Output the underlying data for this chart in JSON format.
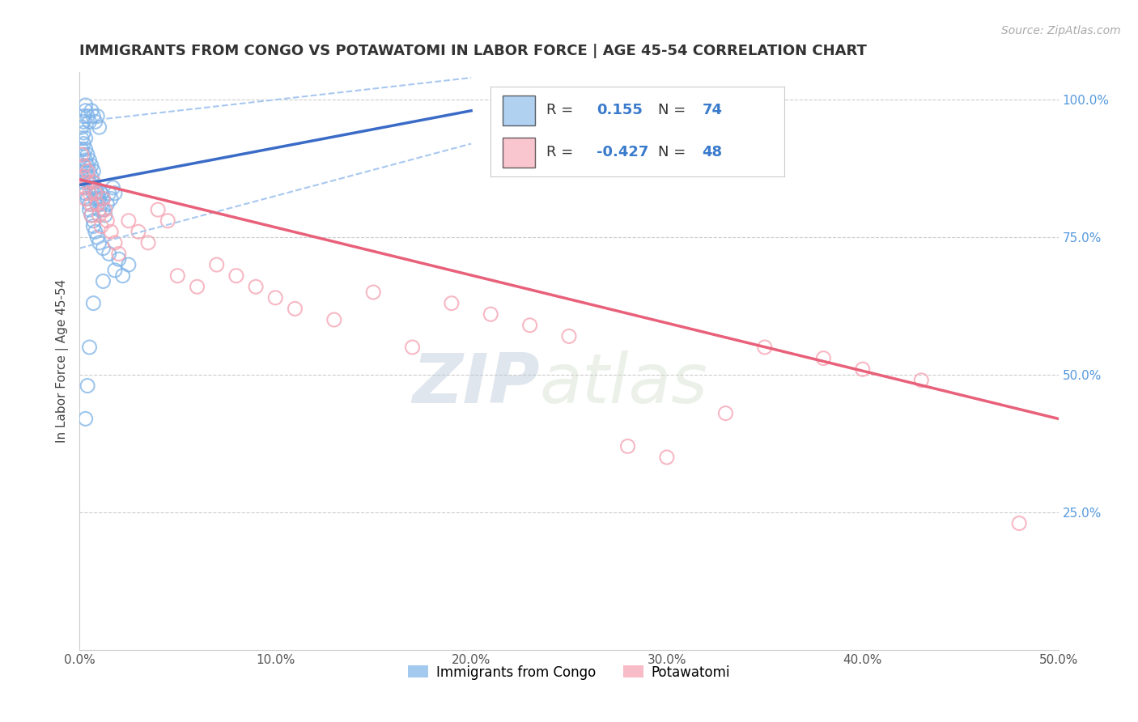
{
  "title": "IMMIGRANTS FROM CONGO VS POTAWATOMI IN LABOR FORCE | AGE 45-54 CORRELATION CHART",
  "source": "Source: ZipAtlas.com",
  "ylabel": "In Labor Force | Age 45-54",
  "xlim": [
    0.0,
    0.5
  ],
  "ylim": [
    0.0,
    1.05
  ],
  "xticks": [
    0.0,
    0.1,
    0.2,
    0.3,
    0.4,
    0.5
  ],
  "xticklabels": [
    "0.0%",
    "10.0%",
    "20.0%",
    "30.0%",
    "40.0%",
    "50.0%"
  ],
  "yticks_right": [
    0.25,
    0.5,
    0.75,
    1.0
  ],
  "yticklabels_right": [
    "25.0%",
    "50.0%",
    "75.0%",
    "100.0%"
  ],
  "watermark_zip": "ZIP",
  "watermark_atlas": "atlas",
  "legend_r_congo": "0.155",
  "legend_n_congo": "74",
  "legend_r_potawatomi": "-0.427",
  "legend_n_potawatomi": "48",
  "color_congo": "#7EB3E8",
  "color_potawatomi": "#F5A0B0",
  "color_trendline_congo": "#3A6BC7",
  "color_trendline_potawatomi": "#E8607A",
  "color_trendline_congo_ci": "#A8C8F0",
  "background_color": "#FFFFFF",
  "congo_x": [
    0.001,
    0.001,
    0.001,
    0.002,
    0.002,
    0.002,
    0.002,
    0.002,
    0.003,
    0.003,
    0.003,
    0.003,
    0.004,
    0.004,
    0.004,
    0.005,
    0.005,
    0.005,
    0.006,
    0.006,
    0.006,
    0.007,
    0.007,
    0.007,
    0.008,
    0.008,
    0.009,
    0.009,
    0.01,
    0.01,
    0.011,
    0.011,
    0.012,
    0.012,
    0.013,
    0.014,
    0.015,
    0.016,
    0.017,
    0.018,
    0.002,
    0.003,
    0.003,
    0.004,
    0.005,
    0.006,
    0.007,
    0.008,
    0.009,
    0.01,
    0.001,
    0.002,
    0.002,
    0.003,
    0.004,
    0.005,
    0.005,
    0.006,
    0.007,
    0.007,
    0.008,
    0.009,
    0.01,
    0.012,
    0.015,
    0.02,
    0.025,
    0.018,
    0.022,
    0.012,
    0.007,
    0.005,
    0.004,
    0.003
  ],
  "congo_y": [
    0.91,
    0.93,
    0.95,
    0.88,
    0.9,
    0.92,
    0.94,
    0.96,
    0.87,
    0.89,
    0.91,
    0.93,
    0.86,
    0.88,
    0.9,
    0.85,
    0.87,
    0.89,
    0.84,
    0.86,
    0.88,
    0.83,
    0.85,
    0.87,
    0.82,
    0.84,
    0.81,
    0.83,
    0.8,
    0.82,
    0.81,
    0.83,
    0.8,
    0.82,
    0.79,
    0.81,
    0.83,
    0.82,
    0.84,
    0.83,
    0.97,
    0.98,
    0.99,
    0.97,
    0.96,
    0.98,
    0.97,
    0.96,
    0.97,
    0.95,
    0.86,
    0.85,
    0.84,
    0.83,
    0.82,
    0.81,
    0.8,
    0.79,
    0.78,
    0.77,
    0.76,
    0.75,
    0.74,
    0.73,
    0.72,
    0.71,
    0.7,
    0.69,
    0.68,
    0.67,
    0.63,
    0.55,
    0.48,
    0.42
  ],
  "potawatomi_x": [
    0.001,
    0.002,
    0.002,
    0.003,
    0.003,
    0.004,
    0.004,
    0.005,
    0.006,
    0.006,
    0.007,
    0.008,
    0.009,
    0.01,
    0.011,
    0.012,
    0.013,
    0.014,
    0.016,
    0.018,
    0.02,
    0.025,
    0.03,
    0.035,
    0.04,
    0.045,
    0.05,
    0.06,
    0.07,
    0.08,
    0.09,
    0.1,
    0.11,
    0.13,
    0.15,
    0.17,
    0.19,
    0.21,
    0.23,
    0.25,
    0.28,
    0.3,
    0.33,
    0.35,
    0.38,
    0.4,
    0.43,
    0.48
  ],
  "potawatomi_y": [
    0.9,
    0.88,
    0.86,
    0.84,
    0.82,
    0.87,
    0.85,
    0.83,
    0.81,
    0.79,
    0.85,
    0.83,
    0.81,
    0.79,
    0.77,
    0.82,
    0.8,
    0.78,
    0.76,
    0.74,
    0.72,
    0.78,
    0.76,
    0.74,
    0.8,
    0.78,
    0.68,
    0.66,
    0.7,
    0.68,
    0.66,
    0.64,
    0.62,
    0.6,
    0.65,
    0.55,
    0.63,
    0.61,
    0.59,
    0.57,
    0.37,
    0.35,
    0.43,
    0.55,
    0.53,
    0.51,
    0.49,
    0.23
  ],
  "trendline_congo_x0": 0.0,
  "trendline_congo_x1": 0.2,
  "trendline_congo_y0": 0.845,
  "trendline_congo_y1": 0.98,
  "trendline_congo_ci_upper_y0": 0.96,
  "trendline_congo_ci_upper_y1": 1.04,
  "trendline_congo_ci_lower_y0": 0.73,
  "trendline_congo_ci_lower_y1": 0.92,
  "trendline_pota_x0": 0.0,
  "trendline_pota_x1": 0.5,
  "trendline_pota_y0": 0.855,
  "trendline_pota_y1": 0.42
}
